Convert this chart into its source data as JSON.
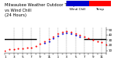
{
  "title": "Milwaukee Weather Outdoor Temperature\nvs Wind Chill\n(24 Hours)",
  "hours": [
    0,
    1,
    2,
    3,
    4,
    5,
    6,
    7,
    8,
    9,
    10,
    11,
    12,
    13,
    14,
    15,
    16,
    17,
    18,
    19,
    20,
    21,
    22,
    23
  ],
  "temp": [
    10,
    12,
    13,
    14,
    14,
    15,
    16,
    19,
    23,
    28,
    32,
    37,
    42,
    46,
    47,
    45,
    43,
    40,
    36,
    33,
    30,
    28,
    26,
    22
  ],
  "wind_chill": [
    null,
    null,
    null,
    null,
    null,
    null,
    null,
    null,
    null,
    24,
    28,
    33,
    38,
    43,
    44,
    42,
    40,
    37,
    null,
    null,
    null,
    null,
    null,
    null
  ],
  "temp_color": "#ff0000",
  "wind_chill_color": "#0000cc",
  "freeze_line_y": 32,
  "freeze_line_color": "#000000",
  "bg_color": "#ffffff",
  "grid_color": "#888888",
  "ylim": [
    5,
    55
  ],
  "xlim": [
    0,
    23
  ],
  "yticks": [
    10,
    20,
    30,
    40,
    50
  ],
  "ytick_labels": [
    "10",
    "20",
    "30",
    "40",
    "50"
  ],
  "xticks": [
    0,
    1,
    2,
    3,
    4,
    5,
    6,
    7,
    8,
    9,
    10,
    11,
    12,
    13,
    14,
    15,
    16,
    17,
    18,
    19,
    20,
    21,
    22,
    23
  ],
  "xtick_labels": [
    "1",
    "",
    "3",
    "",
    "5",
    "",
    "7",
    "",
    "9",
    "",
    "11",
    "",
    "1",
    "",
    "3",
    "",
    "5",
    "",
    "7",
    "",
    "9",
    "",
    "11",
    ""
  ],
  "legend_temp_label": "Temp",
  "legend_wc_label": "Wind Chill",
  "freeze_seg1": [
    0,
    7
  ],
  "freeze_seg2": [
    18,
    23
  ],
  "marker_size": 1.5,
  "title_fontsize": 3.8,
  "tick_fontsize": 3.0,
  "legend_fontsize": 3.0
}
